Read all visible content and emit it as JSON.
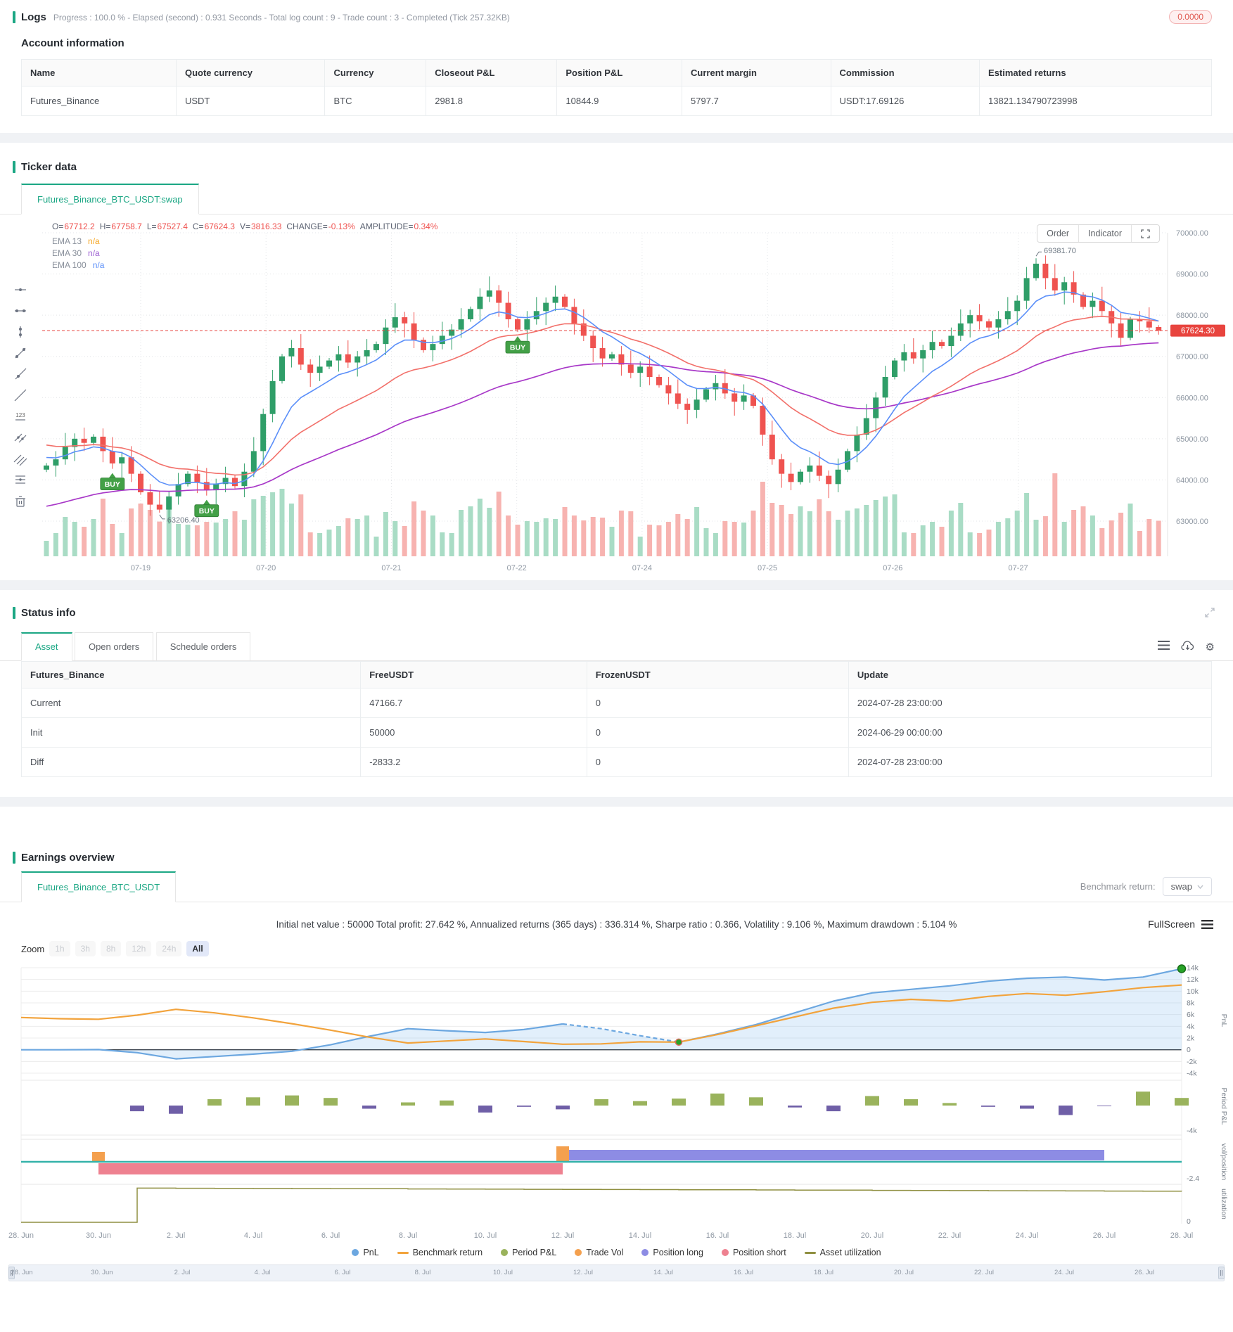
{
  "logs": {
    "title": "Logs",
    "summary": "Progress : 100.0 % - Elapsed (second) : 0.931  Seconds - Total log count : 9 - Trade count : 3 - Completed (Tick 257.32KB)",
    "badge": "0.0000"
  },
  "account": {
    "heading": "Account information",
    "columns": [
      "Name",
      "Quote currency",
      "Currency",
      "Closeout P&L",
      "Position P&L",
      "Current margin",
      "Commission",
      "Estimated returns"
    ],
    "row": [
      "Futures_Binance",
      "USDT",
      "BTC",
      "2981.8",
      "10844.9",
      "5797.7",
      "USDT:17.69126",
      "13821.134790723998"
    ]
  },
  "ticker": {
    "title": "Ticker data",
    "tab": "Futures_Binance_BTC_USDT:swap",
    "ohlc": {
      "labels": [
        "O=",
        "H=",
        "L=",
        "C=",
        "V=",
        "CHANGE=",
        "AMPLITUDE="
      ],
      "values": [
        "67712.2",
        "67758.7",
        "67527.4",
        "67624.3",
        "3816.33",
        "-0.13%",
        "0.34%"
      ]
    },
    "emas": [
      {
        "label": "EMA 13",
        "value": "n/a",
        "color": "#f5a623"
      },
      {
        "label": "EMA 30",
        "value": "n/a",
        "color": "#9d5fd3"
      },
      {
        "label": "EMA 100",
        "value": "n/a",
        "color": "#5b8ff9"
      }
    ],
    "buttons": {
      "order": "Order",
      "indicator": "Indicator"
    },
    "chart_data": {
      "type": "candlestick",
      "closes": [
        64350,
        64500,
        64800,
        65000,
        64900,
        65050,
        64700,
        64400,
        64550,
        64150,
        63700,
        63400,
        63280,
        63600,
        63900,
        64150,
        63950,
        63750,
        63900,
        64050,
        63850,
        64200,
        64700,
        65600,
        66400,
        67000,
        67200,
        66800,
        66600,
        66750,
        66900,
        67050,
        66850,
        67000,
        67150,
        67300,
        67700,
        67950,
        67800,
        67400,
        67150,
        67300,
        67500,
        67650,
        67900,
        68150,
        68450,
        68600,
        68300,
        67900,
        67650,
        67900,
        68100,
        68300,
        68450,
        68200,
        67800,
        67500,
        67200,
        66950,
        67050,
        66800,
        66600,
        66750,
        66500,
        66300,
        66100,
        65850,
        65700,
        65950,
        66200,
        66350,
        66100,
        65900,
        66050,
        65800,
        65100,
        64500,
        64150,
        63950,
        64200,
        64350,
        64100,
        63900,
        64250,
        64700,
        65100,
        65500,
        66000,
        66500,
        66900,
        67100,
        66950,
        67150,
        67350,
        67250,
        67500,
        67800,
        68000,
        67850,
        67700,
        67900,
        68100,
        68350,
        68900,
        69250,
        68900,
        68600,
        68800,
        68500,
        68200,
        68350,
        68100,
        67800,
        67450,
        67900,
        67850,
        67700,
        67624.3
      ],
      "last_candle": {
        "o": 67712.2,
        "h": 67758.7,
        "l": 67527.4,
        "c": 67624.3
      },
      "y_ticks": [
        "70000.00",
        "69000.00",
        "68000.00",
        "67000.00",
        "66000.00",
        "65000.00",
        "64000.00",
        "63000.00"
      ],
      "x_ticks": [
        "07-19",
        "07-20",
        "07-21",
        "07-22",
        "07-24",
        "07-25",
        "07-26",
        "07-27"
      ],
      "current_price": {
        "value": 67624.3,
        "label": "67624.30"
      },
      "high_annotation": {
        "index": 105,
        "price": 69381.7,
        "label": "69381.70"
      },
      "low_annotation": {
        "index": 12,
        "price": 63206.4,
        "label": "63206.40"
      },
      "buy_markers": [
        {
          "index": 7,
          "label": "BUY"
        },
        {
          "index": 17,
          "label": "BUY"
        },
        {
          "index": 50,
          "label": "BUY"
        }
      ],
      "volume_spike_index": 107,
      "colors": {
        "up": "#2f9e68",
        "down": "#ef5350",
        "vol_up": "#a9dcc5",
        "vol_down": "#f7b3b0",
        "ema13": "#5b8ff9",
        "ema30": "#f2706a",
        "ema100": "#a838c8",
        "price_line": "#e8443e",
        "buy": "#43a047"
      }
    }
  },
  "status": {
    "title": "Status info",
    "tabs": [
      "Asset",
      "Open orders",
      "Schedule orders"
    ],
    "active_tab": "Asset",
    "columns": [
      "Futures_Binance",
      "FreeUSDT",
      "FrozenUSDT",
      "Update"
    ],
    "rows": [
      [
        "Current",
        "47166.7",
        "0",
        "2024-07-28 23:00:00"
      ],
      [
        "Init",
        "50000",
        "0",
        "2024-06-29 00:00:00"
      ],
      [
        "Diff",
        "-2833.2",
        "0",
        "2024-07-28 23:00:00"
      ]
    ]
  },
  "earnings": {
    "title": "Earnings overview",
    "tab": "Futures_Binance_BTC_USDT",
    "benchmark_label": "Benchmark return:",
    "benchmark_value": "swap",
    "stats": "Initial net value : 50000 Total profit: 27.642 %, Annualized returns (365 days) : 336.314 %, Sharpe ratio : 0.366, Volatility : 9.106 %, Maximum drawdown : 5.104 %",
    "fullscreen": "FullScreen",
    "zoom_label": "Zoom",
    "zoom_buttons": [
      {
        "label": "1h",
        "state": "disabled"
      },
      {
        "label": "3h",
        "state": "disabled"
      },
      {
        "label": "8h",
        "state": "disabled"
      },
      {
        "label": "12h",
        "state": "disabled"
      },
      {
        "label": "24h",
        "state": "disabled"
      },
      {
        "label": "All",
        "state": "active"
      }
    ],
    "chart_data": {
      "type": "mixed-timeseries",
      "days": 31,
      "x_labels": [
        "28. Jun",
        "30. Jun",
        "2. Jul",
        "4. Jul",
        "6. Jul",
        "8. Jul",
        "10. Jul",
        "12. Jul",
        "14. Jul",
        "16. Jul",
        "18. Jul",
        "20. Jul",
        "22. Jul",
        "24. Jul",
        "26. Jul",
        "28. Jul"
      ],
      "pnl": {
        "name": "PnL",
        "color": "#6ca7e0",
        "area": "rgba(124,181,236,0.22)",
        "values": [
          0,
          0,
          30,
          -500,
          -1550,
          -1150,
          -750,
          -250,
          850,
          2300,
          3600,
          3250,
          2950,
          3450,
          4400,
          3600,
          2400,
          1300,
          2700,
          4300,
          6300,
          8300,
          9700,
          10300,
          10900,
          11700,
          12200,
          12400,
          11900,
          12400,
          13821
        ],
        "dashed_from": 14,
        "dashed_to": 17,
        "dot_indexes": [
          17,
          30
        ],
        "final_value": 13821
      },
      "benchmark": {
        "name": "Benchmark return",
        "color": "#f2a33c",
        "values": [
          5500,
          5300,
          5200,
          5900,
          6900,
          6300,
          5450,
          4450,
          3350,
          2150,
          1150,
          1500,
          1850,
          1400,
          950,
          1000,
          1350,
          1300,
          2600,
          4100,
          5600,
          7100,
          8100,
          8600,
          8300,
          9100,
          9600,
          9300,
          9900,
          10600,
          11050
        ]
      },
      "period_pnl": {
        "name": "Period P&L",
        "pos_color": "#9ab35c",
        "neg_color": "#6f5fa7",
        "values_k": [
          0,
          0,
          0,
          -0.9,
          -1.3,
          1.0,
          1.3,
          1.6,
          1.2,
          -0.5,
          0.5,
          0.8,
          -1.1,
          -0.2,
          -0.6,
          1.0,
          0.7,
          1.1,
          1.9,
          1.3,
          -0.3,
          -0.9,
          1.5,
          1.0,
          0.4,
          -0.2,
          -0.5,
          -1.5,
          -0.1,
          2.2,
          1.2
        ]
      },
      "trade_vol": {
        "name": "Trade Vol",
        "color": "#f4a04e",
        "bars": [
          {
            "index": 2,
            "height": 14
          },
          {
            "index": 14,
            "height": 22
          }
        ]
      },
      "position_long": {
        "name": "Position long",
        "color": "#8d8ce4",
        "from": 14,
        "to": 28
      },
      "position_short": {
        "name": "Position short",
        "color": "#ee8190",
        "from": 2,
        "to": 14
      },
      "baseline_color": "#35b3aa",
      "utilization": {
        "name": "Asset utilization",
        "color": "#8f8f40",
        "values": [
          0,
          0,
          0,
          0.935,
          0.93,
          0.928,
          0.925,
          0.922,
          0.92,
          0.918,
          0.912,
          0.91,
          0.906,
          0.902,
          0.9,
          0.897,
          0.894,
          0.89,
          0.888,
          0.884,
          0.88,
          0.878,
          0.874,
          0.87,
          0.868,
          0.864,
          0.86,
          0.857,
          0.853,
          0.85,
          0.848
        ]
      },
      "axes": {
        "pnl_ticks": [
          "14k",
          "12k",
          "10k",
          "8k",
          "6k",
          "4k",
          "2k",
          "0",
          "-2k",
          "-4k"
        ],
        "pnl_label": "PnL",
        "period_label": "Period P&L",
        "period_tick": "-4k",
        "vol_label": "vol/position",
        "vol_tick": "-2.4",
        "util_label": "utilization",
        "util_tick": "0"
      }
    },
    "legend": [
      {
        "label": "PnL",
        "color": "#6ca7e0",
        "marker": "circle"
      },
      {
        "label": "Benchmark return",
        "color": "#f2a33c",
        "marker": "line"
      },
      {
        "label": "Period P&L",
        "color": "#9ab35c",
        "marker": "circle"
      },
      {
        "label": "Trade Vol",
        "color": "#f4a04e",
        "marker": "circle"
      },
      {
        "label": "Position long",
        "color": "#8d8ce4",
        "marker": "circle"
      },
      {
        "label": "Position short",
        "color": "#ee8190",
        "marker": "circle"
      },
      {
        "label": "Asset utilization",
        "color": "#8f8f40",
        "marker": "line"
      }
    ],
    "navigator_labels": [
      "28. Jun",
      "30. Jun",
      "2. Jul",
      "4. Jul",
      "6. Jul",
      "8. Jul",
      "10. Jul",
      "12. Jul",
      "14. Jul",
      "16. Jul",
      "18. Jul",
      "20. Jul",
      "22. Jul",
      "24. Jul",
      "26. Jul"
    ]
  }
}
